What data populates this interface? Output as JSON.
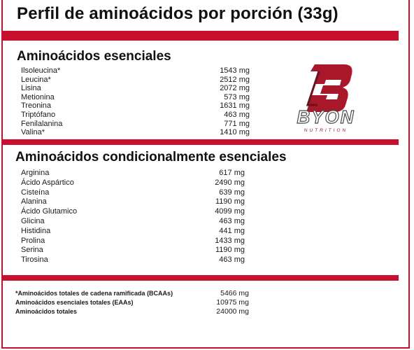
{
  "title": "Perfil de aminoácidos por porción (33g)",
  "brand": {
    "name": "BYON",
    "tagline": "NUTRITION",
    "color": "#a8182a"
  },
  "colors": {
    "accent": "#c8102e"
  },
  "essential": {
    "heading": "Aminoácidos esenciales",
    "items": [
      {
        "name": "Ilsoleucina*",
        "value": "1543 mg"
      },
      {
        "name": "Leucina*",
        "value": "2512 mg"
      },
      {
        "name": "Lisina",
        "value": "2072 mg"
      },
      {
        "name": "Metionina",
        "value": "573 mg"
      },
      {
        "name": "Treonina",
        "value": "1631 mg"
      },
      {
        "name": "Triptófano",
        "value": "463 mg"
      },
      {
        "name": "Fenilalanina",
        "value": "771 mg"
      },
      {
        "name": "Valina*",
        "value": "1410 mg"
      }
    ]
  },
  "conditional": {
    "heading": "Aminoácidos condicionalmente esenciales",
    "items": [
      {
        "name": "Arginina",
        "value": "617 mg"
      },
      {
        "name": "Ácido Aspártico",
        "value": "2490 mg"
      },
      {
        "name": "Cisteína",
        "value": "639 mg"
      },
      {
        "name": "Alanina",
        "value": "1190 mg"
      },
      {
        "name": "Ácido Glutamico",
        "value": "4099 mg"
      },
      {
        "name": "Glicina",
        "value": "463 mg"
      },
      {
        "name": "Histidina",
        "value": "441 mg"
      },
      {
        "name": "Prolina",
        "value": "1433 mg"
      },
      {
        "name": "Serina",
        "value": "1190 mg"
      },
      {
        "name": "Tirosina",
        "value": "463 mg"
      }
    ]
  },
  "totals": [
    {
      "name": "*Aminoácidos totales de cadena ramificada (BCAAs)",
      "value": "5466 mg"
    },
    {
      "name": "Aminoácidos esenciales totales (EAAs)",
      "value": "10975 mg"
    },
    {
      "name": "Aminoácidos totales",
      "value": "24000 mg"
    }
  ]
}
